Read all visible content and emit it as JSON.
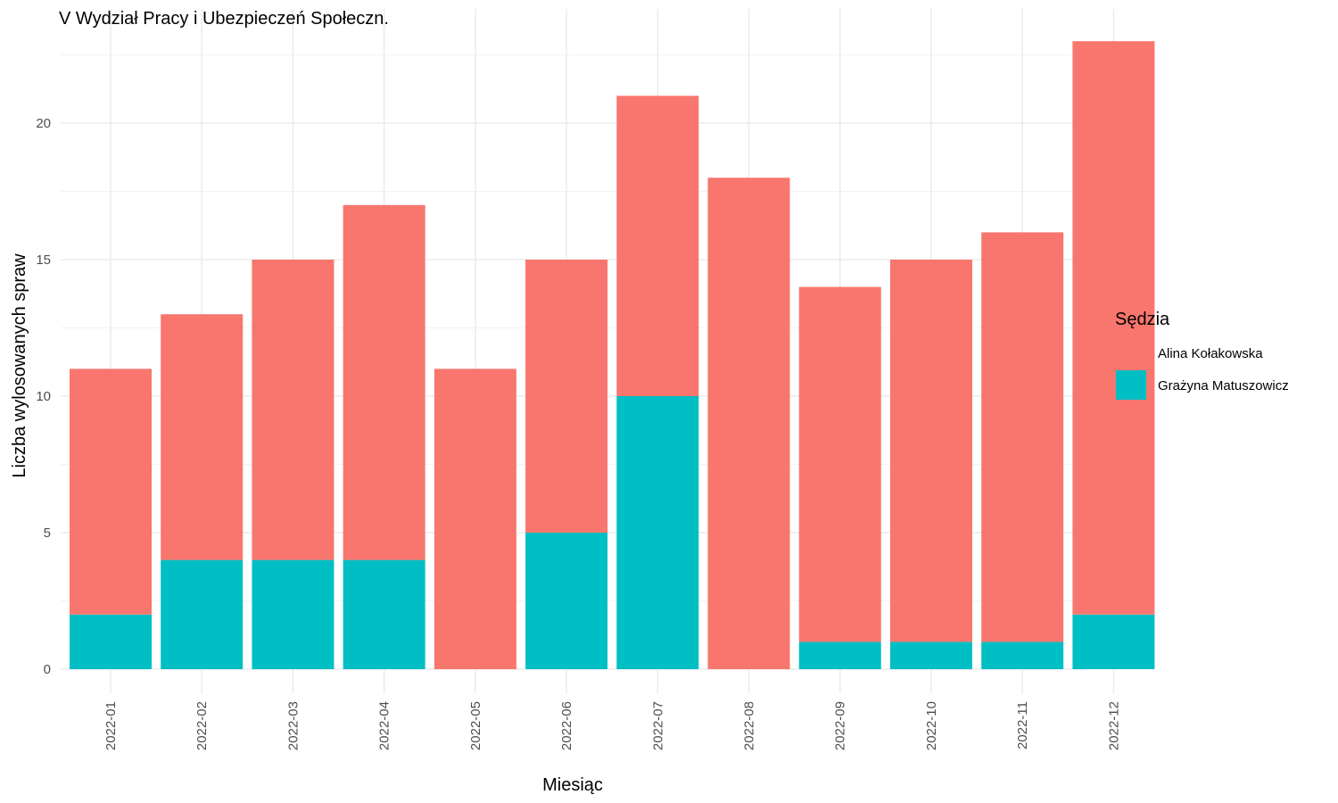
{
  "chart_data": {
    "type": "bar",
    "stacked": true,
    "title": "V Wydział Pracy i Ubezpieczeń Społeczn.",
    "xlabel": "Miesiąc",
    "ylabel": "Liczba wylosowanych spraw",
    "ylim": [
      0,
      24
    ],
    "yticks": [
      0,
      5,
      10,
      15,
      20
    ],
    "grid": true,
    "legend_position": "right",
    "legend_title": "Sędzia",
    "categories": [
      "2022-01",
      "2022-02",
      "2022-03",
      "2022-04",
      "2022-05",
      "2022-06",
      "2022-07",
      "2022-08",
      "2022-09",
      "2022-10",
      "2022-11",
      "2022-12"
    ],
    "series": [
      {
        "name": "Grażyna Matuszowicz",
        "color": "#00BFC4",
        "values": [
          2,
          4,
          4,
          4,
          0,
          5,
          10,
          0,
          1,
          1,
          1,
          2
        ]
      },
      {
        "name": "Alina Kołakowska",
        "color": "#F8766D",
        "values": [
          9,
          9,
          11,
          13,
          11,
          10,
          11,
          18,
          13,
          14,
          15,
          21
        ]
      }
    ],
    "legend_order": [
      "Alina Kołakowska",
      "Grażyna Matuszowicz"
    ]
  }
}
